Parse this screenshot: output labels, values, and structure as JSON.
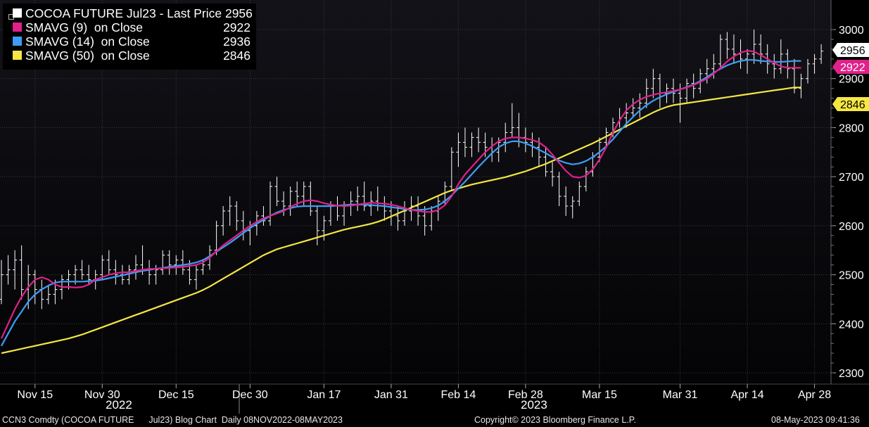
{
  "legend": {
    "items": [
      {
        "label": "COCOA FUTURE Jul23 - Last Price 2956",
        "value": "",
        "color": "#ffffff"
      },
      {
        "label": "SMAVG (9)  on Close",
        "value": "2922",
        "color": "#e0218a"
      },
      {
        "label": "SMAVG (14)  on Close",
        "value": "2936",
        "color": "#3d9df5"
      },
      {
        "label": "SMAVG (50)  on Close",
        "value": "2846",
        "color": "#f5e642"
      }
    ]
  },
  "badges": [
    {
      "text": "2956",
      "bg": "#ffffff",
      "fg": "#000000"
    },
    {
      "text": "2922",
      "bg": "#e0218a",
      "fg": "#ffffff"
    },
    {
      "text": "2846",
      "bg": "#f5e642",
      "fg": "#000000"
    }
  ],
  "years": {
    "left": "2022",
    "right": "2023"
  },
  "footer": {
    "left": "CCN3 Comdty (COCOA FUTURE      Jul23) Blog Chart  Daily 08NOV2022-08MAY2023",
    "center": "Copyright© 2023 Bloomberg Finance L.P.",
    "right": "08-May-2023 09:41:36"
  },
  "chart_data": {
    "type": "line",
    "title": "",
    "ylim": [
      2275,
      3025
    ],
    "yticks": [
      2300,
      2400,
      2500,
      2600,
      2700,
      2800,
      2900,
      3000
    ],
    "x_ticks": [
      {
        "label": "Nov 15",
        "idx": 5
      },
      {
        "label": "Nov 30",
        "idx": 15
      },
      {
        "label": "Dec 15",
        "idx": 26
      },
      {
        "label": "Dec 30",
        "idx": 37
      },
      {
        "label": "Jan 17",
        "idx": 48
      },
      {
        "label": "Jan 31",
        "idx": 58
      },
      {
        "label": "Feb 14",
        "idx": 68
      },
      {
        "label": "Feb 28",
        "idx": 78
      },
      {
        "label": "Mar 15",
        "idx": 89
      },
      {
        "label": "Mar 31",
        "idx": 101
      },
      {
        "label": "Apr 14",
        "idx": 111
      },
      {
        "label": "Apr 28",
        "idx": 121
      }
    ],
    "price_bars": [
      [
        2450,
        2530,
        2440,
        2500
      ],
      [
        2500,
        2540,
        2480,
        2510
      ],
      [
        2510,
        2550,
        2470,
        2530
      ],
      [
        2530,
        2560,
        2450,
        2470
      ],
      [
        2470,
        2520,
        2430,
        2500
      ],
      [
        2500,
        2510,
        2440,
        2470
      ],
      [
        2470,
        2490,
        2430,
        2450
      ],
      [
        2450,
        2480,
        2440,
        2460
      ],
      [
        2460,
        2490,
        2440,
        2470
      ],
      [
        2470,
        2500,
        2450,
        2490
      ],
      [
        2490,
        2510,
        2470,
        2500
      ],
      [
        2500,
        2520,
        2480,
        2510
      ],
      [
        2510,
        2530,
        2490,
        2500
      ],
      [
        2500,
        2520,
        2480,
        2490
      ],
      [
        2490,
        2510,
        2470,
        2500
      ],
      [
        2500,
        2540,
        2490,
        2530
      ],
      [
        2530,
        2550,
        2500,
        2510
      ],
      [
        2510,
        2530,
        2480,
        2500
      ],
      [
        2500,
        2520,
        2480,
        2490
      ],
      [
        2490,
        2520,
        2480,
        2510
      ],
      [
        2510,
        2540,
        2490,
        2520
      ],
      [
        2520,
        2560,
        2500,
        2510
      ],
      [
        2510,
        2530,
        2480,
        2500
      ],
      [
        2500,
        2520,
        2480,
        2510
      ],
      [
        2510,
        2550,
        2500,
        2540
      ],
      [
        2540,
        2550,
        2500,
        2520
      ],
      [
        2520,
        2540,
        2500,
        2530
      ],
      [
        2530,
        2550,
        2500,
        2510
      ],
      [
        2510,
        2530,
        2480,
        2490
      ],
      [
        2490,
        2520,
        2470,
        2510
      ],
      [
        2510,
        2530,
        2500,
        2520
      ],
      [
        2520,
        2560,
        2510,
        2550
      ],
      [
        2550,
        2610,
        2540,
        2600
      ],
      [
        2600,
        2640,
        2580,
        2630
      ],
      [
        2630,
        2660,
        2600,
        2640
      ],
      [
        2640,
        2650,
        2590,
        2610
      ],
      [
        2610,
        2630,
        2570,
        2590
      ],
      [
        2590,
        2610,
        2560,
        2600
      ],
      [
        2600,
        2630,
        2580,
        2620
      ],
      [
        2620,
        2640,
        2600,
        2610
      ],
      [
        2610,
        2690,
        2600,
        2680
      ],
      [
        2680,
        2700,
        2640,
        2650
      ],
      [
        2650,
        2670,
        2620,
        2640
      ],
      [
        2640,
        2680,
        2620,
        2670
      ],
      [
        2670,
        2690,
        2640,
        2660
      ],
      [
        2660,
        2690,
        2640,
        2680
      ],
      [
        2680,
        2690,
        2620,
        2630
      ],
      [
        2630,
        2640,
        2560,
        2590
      ],
      [
        2590,
        2620,
        2570,
        2610
      ],
      [
        2610,
        2650,
        2600,
        2640
      ],
      [
        2640,
        2660,
        2610,
        2620
      ],
      [
        2620,
        2650,
        2600,
        2640
      ],
      [
        2640,
        2670,
        2620,
        2650
      ],
      [
        2650,
        2680,
        2630,
        2660
      ],
      [
        2660,
        2690,
        2630,
        2640
      ],
      [
        2640,
        2670,
        2620,
        2650
      ],
      [
        2650,
        2680,
        2630,
        2640
      ],
      [
        2640,
        2660,
        2610,
        2630
      ],
      [
        2630,
        2650,
        2600,
        2620
      ],
      [
        2620,
        2640,
        2590,
        2610
      ],
      [
        2610,
        2650,
        2600,
        2630
      ],
      [
        2630,
        2660,
        2610,
        2640
      ],
      [
        2640,
        2660,
        2600,
        2620
      ],
      [
        2620,
        2640,
        2580,
        2600
      ],
      [
        2600,
        2640,
        2590,
        2630
      ],
      [
        2630,
        2660,
        2610,
        2650
      ],
      [
        2650,
        2690,
        2640,
        2680
      ],
      [
        2680,
        2760,
        2670,
        2750
      ],
      [
        2750,
        2790,
        2720,
        2770
      ],
      [
        2770,
        2800,
        2740,
        2760
      ],
      [
        2760,
        2790,
        2740,
        2780
      ],
      [
        2780,
        2800,
        2750,
        2770
      ],
      [
        2770,
        2790,
        2740,
        2760
      ],
      [
        2760,
        2780,
        2730,
        2750
      ],
      [
        2750,
        2780,
        2730,
        2770
      ],
      [
        2770,
        2810,
        2750,
        2790
      ],
      [
        2790,
        2850,
        2780,
        2800
      ],
      [
        2800,
        2830,
        2760,
        2780
      ],
      [
        2780,
        2800,
        2750,
        2770
      ],
      [
        2770,
        2790,
        2740,
        2760
      ],
      [
        2760,
        2780,
        2720,
        2740
      ],
      [
        2740,
        2760,
        2700,
        2710
      ],
      [
        2710,
        2730,
        2680,
        2700
      ],
      [
        2700,
        2710,
        2640,
        2660
      ],
      [
        2660,
        2680,
        2620,
        2640
      ],
      [
        2640,
        2660,
        2615,
        2650
      ],
      [
        2650,
        2690,
        2640,
        2680
      ],
      [
        2680,
        2720,
        2670,
        2710
      ],
      [
        2710,
        2750,
        2700,
        2740
      ],
      [
        2740,
        2780,
        2730,
        2770
      ],
      [
        2770,
        2800,
        2760,
        2790
      ],
      [
        2790,
        2820,
        2780,
        2810
      ],
      [
        2810,
        2840,
        2800,
        2820
      ],
      [
        2820,
        2850,
        2800,
        2830
      ],
      [
        2830,
        2860,
        2820,
        2840
      ],
      [
        2840,
        2870,
        2820,
        2850
      ],
      [
        2850,
        2900,
        2840,
        2880
      ],
      [
        2880,
        2920,
        2860,
        2900
      ],
      [
        2900,
        2910,
        2840,
        2870
      ],
      [
        2870,
        2890,
        2850,
        2880
      ],
      [
        2880,
        2900,
        2850,
        2870
      ],
      [
        2870,
        2890,
        2810,
        2860
      ],
      [
        2860,
        2900,
        2850,
        2890
      ],
      [
        2890,
        2910,
        2860,
        2880
      ],
      [
        2880,
        2920,
        2870,
        2910
      ],
      [
        2910,
        2940,
        2890,
        2920
      ],
      [
        2920,
        2950,
        2900,
        2930
      ],
      [
        2930,
        2990,
        2920,
        2980
      ],
      [
        2980,
        2995,
        2940,
        2960
      ],
      [
        2960,
        2990,
        2930,
        2950
      ],
      [
        2950,
        2980,
        2920,
        2940
      ],
      [
        2940,
        2960,
        2910,
        2950
      ],
      [
        2950,
        3000,
        2930,
        2970
      ],
      [
        2970,
        2990,
        2930,
        2950
      ],
      [
        2950,
        2970,
        2910,
        2930
      ],
      [
        2930,
        2950,
        2900,
        2920
      ],
      [
        2920,
        2980,
        2910,
        2950
      ],
      [
        2950,
        2960,
        2900,
        2920
      ],
      [
        2920,
        2940,
        2870,
        2880
      ],
      [
        2880,
        2910,
        2860,
        2900
      ],
      [
        2900,
        2940,
        2890,
        2930
      ],
      [
        2930,
        2950,
        2910,
        2940
      ],
      [
        2940,
        2970,
        2930,
        2956
      ]
    ],
    "series": [
      {
        "name": "SMAVG (9)  on Close",
        "color": "#e0218a",
        "values": [
          2370,
          2400,
          2430,
          2455,
          2475,
          2490,
          2495,
          2490,
          2480,
          2475,
          2475,
          2474,
          2475,
          2480,
          2490,
          2495,
          2500,
          2503,
          2505,
          2505,
          2508,
          2510,
          2512,
          2512,
          2513,
          2514,
          2515,
          2516,
          2518,
          2520,
          2525,
          2535,
          2548,
          2560,
          2570,
          2580,
          2590,
          2600,
          2608,
          2615,
          2620,
          2625,
          2630,
          2638,
          2645,
          2650,
          2652,
          2650,
          2646,
          2643,
          2641,
          2640,
          2641,
          2643,
          2645,
          2647,
          2646,
          2645,
          2643,
          2640,
          2636,
          2632,
          2630,
          2628,
          2628,
          2632,
          2642,
          2660,
          2685,
          2705,
          2720,
          2735,
          2750,
          2762,
          2772,
          2778,
          2780,
          2780,
          2778,
          2775,
          2770,
          2760,
          2745,
          2728,
          2712,
          2700,
          2698,
          2702,
          2715,
          2735,
          2760,
          2790,
          2815,
          2835,
          2848,
          2857,
          2863,
          2867,
          2870,
          2872,
          2875,
          2878,
          2882,
          2887,
          2893,
          2900,
          2910,
          2922,
          2935,
          2945,
          2953,
          2957,
          2955,
          2948,
          2940,
          2932,
          2925,
          2922,
          2922,
          2922
        ]
      },
      {
        "name": "SMAVG (14)  on Close",
        "color": "#3d9df5",
        "values": [
          2355,
          2380,
          2405,
          2425,
          2445,
          2460,
          2470,
          2478,
          2484,
          2486,
          2486,
          2486,
          2486,
          2487,
          2488,
          2490,
          2493,
          2496,
          2499,
          2502,
          2505,
          2508,
          2510,
          2512,
          2514,
          2516,
          2518,
          2520,
          2522,
          2525,
          2530,
          2538,
          2547,
          2556,
          2565,
          2575,
          2585,
          2595,
          2604,
          2612,
          2620,
          2627,
          2632,
          2636,
          2639,
          2640,
          2640,
          2640,
          2640,
          2640,
          2641,
          2642,
          2643,
          2643,
          2643,
          2642,
          2641,
          2640,
          2638,
          2636,
          2634,
          2632,
          2632,
          2633,
          2636,
          2641,
          2650,
          2662,
          2676,
          2690,
          2705,
          2720,
          2734,
          2748,
          2760,
          2768,
          2772,
          2772,
          2768,
          2762,
          2755,
          2748,
          2740,
          2733,
          2728,
          2725,
          2727,
          2732,
          2740,
          2750,
          2762,
          2776,
          2792,
          2808,
          2822,
          2835,
          2846,
          2855,
          2862,
          2868,
          2873,
          2878,
          2883,
          2888,
          2895,
          2903,
          2912,
          2920,
          2927,
          2932,
          2936,
          2938,
          2938,
          2936,
          2935,
          2934,
          2934,
          2935,
          2936,
          2936
        ]
      },
      {
        "name": "SMAVG (50)  on Close",
        "color": "#f5e642",
        "values": [
          2340,
          2343,
          2346,
          2349,
          2352,
          2355,
          2358,
          2361,
          2364,
          2367,
          2370,
          2374,
          2378,
          2383,
          2388,
          2393,
          2398,
          2403,
          2408,
          2413,
          2418,
          2423,
          2428,
          2433,
          2438,
          2443,
          2448,
          2453,
          2458,
          2463,
          2469,
          2476,
          2484,
          2492,
          2500,
          2508,
          2516,
          2524,
          2532,
          2540,
          2546,
          2552,
          2556,
          2560,
          2564,
          2568,
          2572,
          2576,
          2580,
          2584,
          2588,
          2592,
          2595,
          2598,
          2601,
          2604,
          2608,
          2613,
          2619,
          2625,
          2631,
          2637,
          2643,
          2649,
          2655,
          2661,
          2667,
          2672,
          2676,
          2680,
          2684,
          2687,
          2690,
          2693,
          2696,
          2699,
          2703,
          2707,
          2711,
          2716,
          2721,
          2726,
          2732,
          2738,
          2744,
          2750,
          2756,
          2762,
          2768,
          2775,
          2782,
          2789,
          2796,
          2803,
          2810,
          2817,
          2824,
          2831,
          2837,
          2842,
          2846,
          2848,
          2850,
          2852,
          2854,
          2856,
          2858,
          2860,
          2862,
          2864,
          2866,
          2868,
          2870,
          2872,
          2874,
          2876,
          2878,
          2880,
          2882,
          2846
        ]
      }
    ]
  }
}
